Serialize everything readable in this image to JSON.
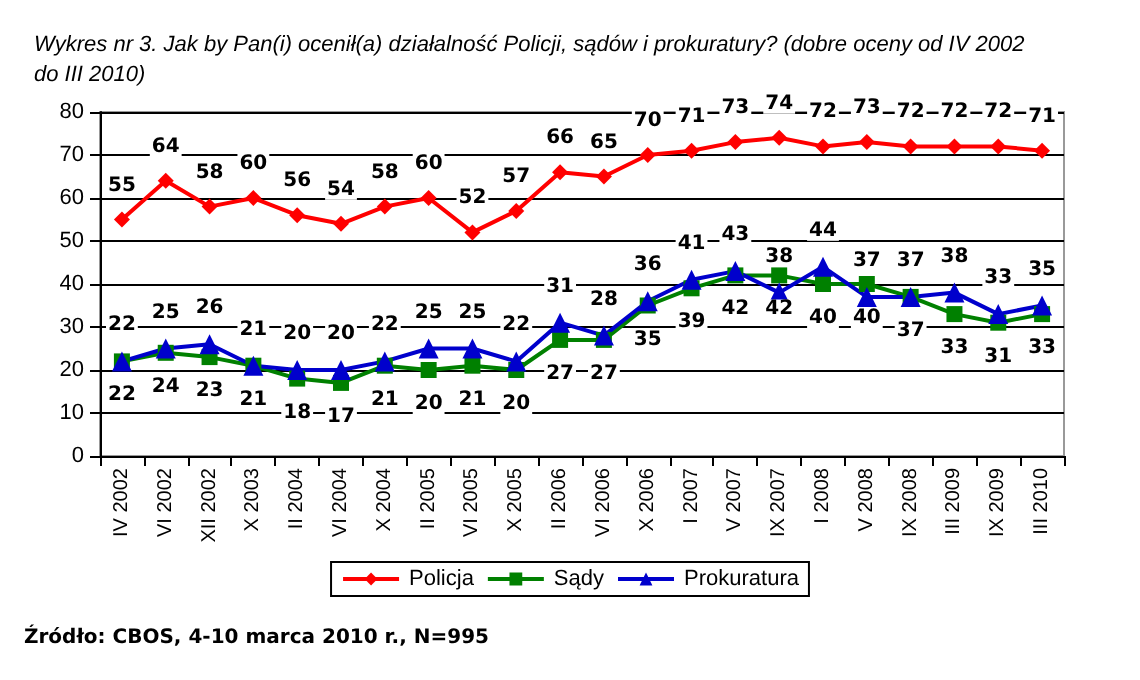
{
  "chart_data": {
    "type": "line",
    "title": "Wykres nr 3. Jak by Pan(i) ocenił(a) działalność Policji, sądów i prokuratury? (dobre oceny od IV 2002 do III 2010)",
    "categories": [
      "IV 2002",
      "VI 2002",
      "XII 2002",
      "X 2003",
      "II 2004",
      "VI 2004",
      "X 2004",
      "II 2005",
      "VI 2005",
      "X 2005",
      "II 2006",
      "VI 2006",
      "X 2006",
      "I 2007",
      "V 2007",
      "IX 2007",
      "I 2008",
      "V 2008",
      "IX 2008",
      "III 2009",
      "IX 2009",
      "III 2010"
    ],
    "series": [
      {
        "name": "Policja",
        "color": "#ff0000",
        "marker": "diamond",
        "values": [
          55,
          64,
          58,
          60,
          56,
          54,
          58,
          60,
          52,
          57,
          66,
          65,
          70,
          71,
          73,
          74,
          72,
          73,
          72,
          72,
          72,
          71
        ]
      },
      {
        "name": "Sądy",
        "color": "#008000",
        "marker": "square",
        "values": [
          22,
          24,
          23,
          21,
          18,
          17,
          21,
          20,
          21,
          20,
          27,
          27,
          35,
          39,
          42,
          42,
          40,
          40,
          37,
          33,
          31,
          33
        ]
      },
      {
        "name": "Prokuratura",
        "color": "#0000cc",
        "marker": "triangle",
        "values": [
          22,
          25,
          26,
          21,
          20,
          20,
          22,
          25,
          25,
          22,
          31,
          28,
          36,
          41,
          43,
          38,
          44,
          37,
          37,
          38,
          33,
          35
        ]
      }
    ],
    "ylim": [
      0,
      80
    ],
    "yticks": [
      0,
      10,
      20,
      30,
      40,
      50,
      60,
      70,
      80
    ],
    "grid": "y",
    "legend": "bottom",
    "data_labels": true,
    "annotations": [
      "Źródło: CBOS, 4-10 marca 2010 r., N=995"
    ]
  }
}
